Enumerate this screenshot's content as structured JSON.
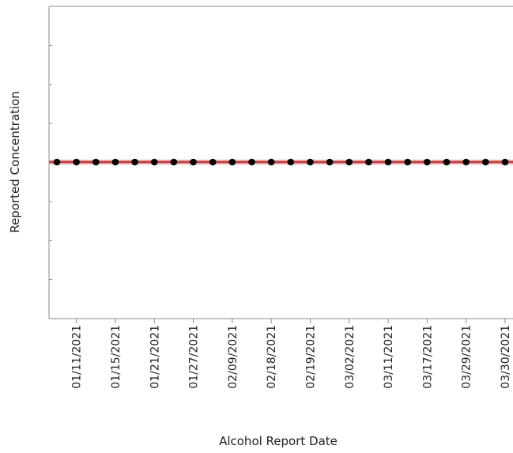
{
  "chart_data": {
    "type": "line",
    "title": "",
    "xlabel": "Alcohol Report Date",
    "ylabel": "Reported Concentration",
    "x_tick_labels": [
      "01/11/2021",
      "01/15/2021",
      "01/21/2021",
      "01/27/2021",
      "02/09/2021",
      "02/18/2021",
      "02/19/2021",
      "03/02/2021",
      "03/11/2021",
      "03/17/2021",
      "03/29/2021",
      "03/30/2021"
    ],
    "points_count": 24,
    "y_values": [
      0,
      0,
      0,
      0,
      0,
      0,
      0,
      0,
      0,
      0,
      0,
      0,
      0,
      0,
      0,
      0,
      0,
      0,
      0,
      0,
      0,
      0,
      0,
      0
    ],
    "y_tick_count": 8,
    "grid": false,
    "legend": "none",
    "colors": {
      "line": "#c0393b",
      "line_glow": "#e6a3a4",
      "marker": "#000000",
      "axis": "#888888",
      "text": "#222222"
    }
  }
}
